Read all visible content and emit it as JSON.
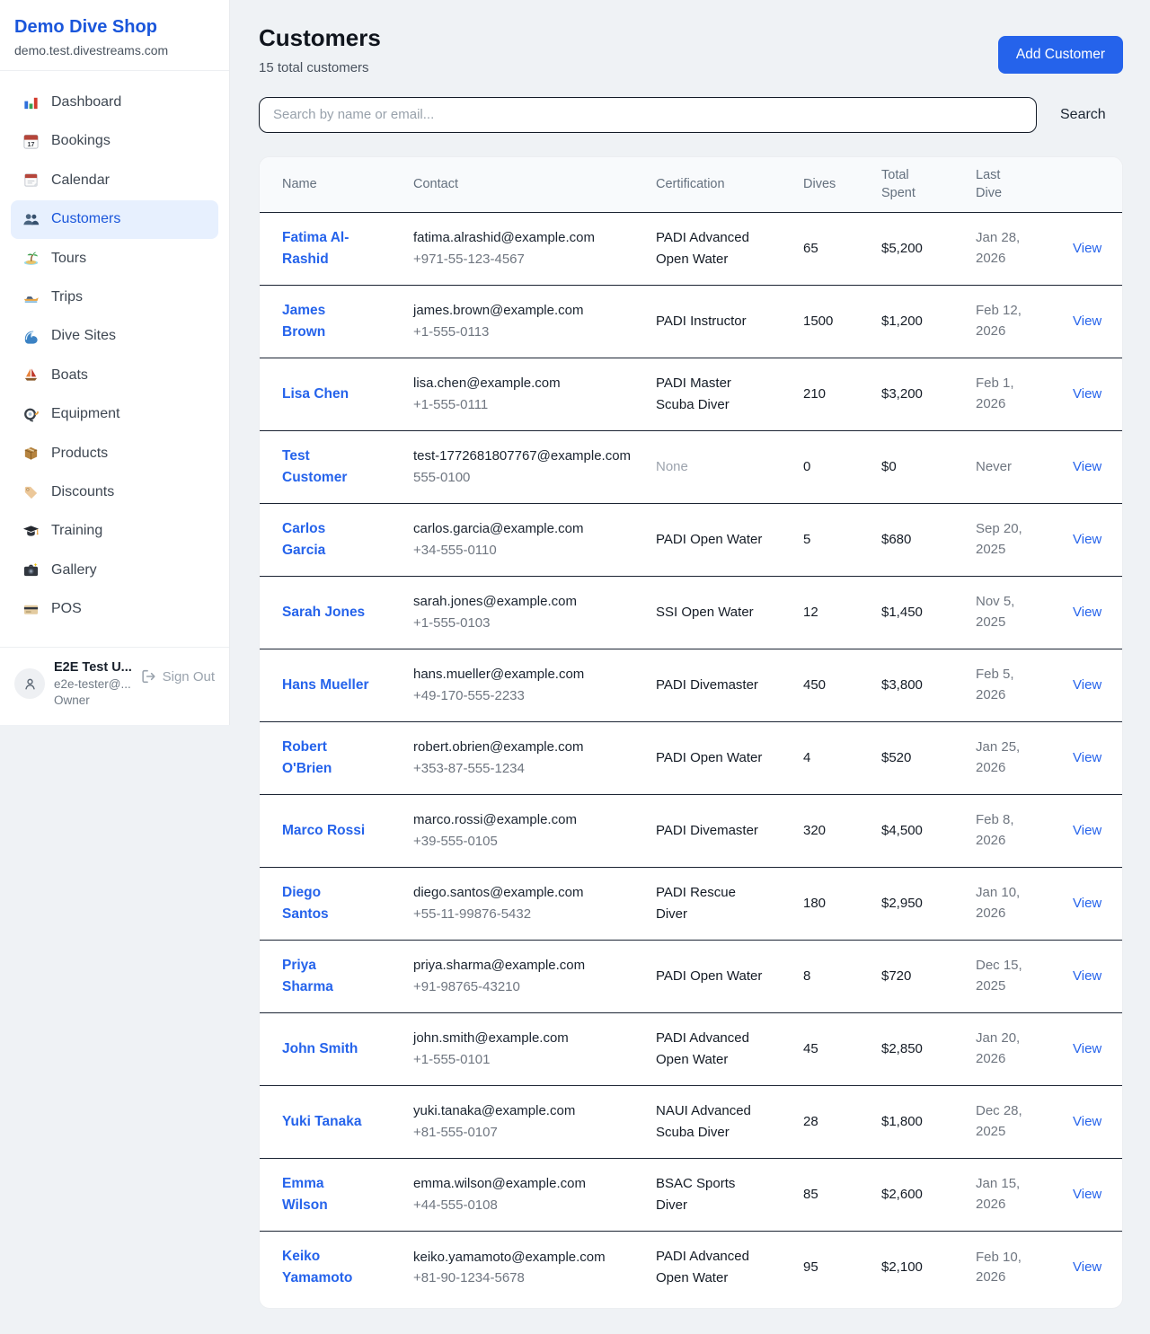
{
  "colors": {
    "accent": "#2563eb",
    "link": "#2563eb",
    "active_nav_bg": "#e7f0fe",
    "sidebar_title": "#1a56db",
    "row_border": "#1b2433"
  },
  "sidebar": {
    "title": "Demo Dive Shop",
    "subdomain": "demo.test.divestreams.com",
    "items": [
      {
        "icon": "bar-chart-icon",
        "label": "Dashboard",
        "active": false
      },
      {
        "icon": "bookings-calendar-icon",
        "label": "Bookings",
        "active": false
      },
      {
        "icon": "calendar-icon",
        "label": "Calendar",
        "active": false
      },
      {
        "icon": "customers-icon",
        "label": "Customers",
        "active": true
      },
      {
        "icon": "island-icon",
        "label": "Tours",
        "active": false
      },
      {
        "icon": "speedboat-icon",
        "label": "Trips",
        "active": false
      },
      {
        "icon": "wave-icon",
        "label": "Dive Sites",
        "active": false
      },
      {
        "icon": "sailboat-icon",
        "label": "Boats",
        "active": false
      },
      {
        "icon": "dive-mask-icon",
        "label": "Equipment",
        "active": false
      },
      {
        "icon": "package-icon",
        "label": "Products",
        "active": false
      },
      {
        "icon": "tag-icon",
        "label": "Discounts",
        "active": false
      },
      {
        "icon": "grad-cap-icon",
        "label": "Training",
        "active": false
      },
      {
        "icon": "camera-icon",
        "label": "Gallery",
        "active": false
      },
      {
        "icon": "credit-card-icon",
        "label": "POS",
        "active": false
      }
    ],
    "user": {
      "avatar_icon": "person-icon",
      "name": "E2E Test U...",
      "email": "e2e-tester@...",
      "role": "Owner",
      "sign_out_icon": "sign-out-icon",
      "sign_out": "Sign Out"
    }
  },
  "header": {
    "title": "Customers",
    "subtitle": "15 total customers",
    "add_button": "Add Customer"
  },
  "search": {
    "placeholder": "Search by name or email...",
    "button": "Search"
  },
  "table": {
    "columns": [
      "Name",
      "Contact",
      "Certification",
      "Dives",
      "Total Spent",
      "Last Dive",
      ""
    ],
    "view_label": "View",
    "rows": [
      {
        "name": "Fatima Al-Rashid",
        "email": "fatima.alrashid@example.com",
        "phone": "+971-55-123-4567",
        "certification": "PADI Advanced Open Water",
        "dives": "65",
        "total_spent": "$5,200",
        "last_dive": "Jan 28, 2026"
      },
      {
        "name": "James Brown",
        "email": "james.brown@example.com",
        "phone": "+1-555-0113",
        "certification": "PADI Instructor",
        "dives": "1500",
        "total_spent": "$1,200",
        "last_dive": "Feb 12, 2026"
      },
      {
        "name": "Lisa Chen",
        "email": "lisa.chen@example.com",
        "phone": "+1-555-0111",
        "certification": "PADI Master Scuba Diver",
        "dives": "210",
        "total_spent": "$3,200",
        "last_dive": "Feb 1, 2026"
      },
      {
        "name": "Test Customer",
        "email": "test-1772681807767@example.com",
        "phone": "555-0100",
        "certification": "None",
        "dives": "0",
        "total_spent": "$0",
        "last_dive": "Never"
      },
      {
        "name": "Carlos Garcia",
        "email": "carlos.garcia@example.com",
        "phone": "+34-555-0110",
        "certification": "PADI Open Water",
        "dives": "5",
        "total_spent": "$680",
        "last_dive": "Sep 20, 2025"
      },
      {
        "name": "Sarah Jones",
        "email": "sarah.jones@example.com",
        "phone": "+1-555-0103",
        "certification": "SSI Open Water",
        "dives": "12",
        "total_spent": "$1,450",
        "last_dive": "Nov 5, 2025"
      },
      {
        "name": "Hans Mueller",
        "email": "hans.mueller@example.com",
        "phone": "+49-170-555-2233",
        "certification": "PADI Divemaster",
        "dives": "450",
        "total_spent": "$3,800",
        "last_dive": "Feb 5, 2026"
      },
      {
        "name": "Robert O'Brien",
        "email": "robert.obrien@example.com",
        "phone": "+353-87-555-1234",
        "certification": "PADI Open Water",
        "dives": "4",
        "total_spent": "$520",
        "last_dive": "Jan 25, 2026"
      },
      {
        "name": "Marco Rossi",
        "email": "marco.rossi@example.com",
        "phone": "+39-555-0105",
        "certification": "PADI Divemaster",
        "dives": "320",
        "total_spent": "$4,500",
        "last_dive": "Feb 8, 2026"
      },
      {
        "name": "Diego Santos",
        "email": "diego.santos@example.com",
        "phone": "+55-11-99876-5432",
        "certification": "PADI Rescue Diver",
        "dives": "180",
        "total_spent": "$2,950",
        "last_dive": "Jan 10, 2026"
      },
      {
        "name": "Priya Sharma",
        "email": "priya.sharma@example.com",
        "phone": "+91-98765-43210",
        "certification": "PADI Open Water",
        "dives": "8",
        "total_spent": "$720",
        "last_dive": "Dec 15, 2025"
      },
      {
        "name": "John Smith",
        "email": "john.smith@example.com",
        "phone": "+1-555-0101",
        "certification": "PADI Advanced Open Water",
        "dives": "45",
        "total_spent": "$2,850",
        "last_dive": "Jan 20, 2026"
      },
      {
        "name": "Yuki Tanaka",
        "email": "yuki.tanaka@example.com",
        "phone": "+81-555-0107",
        "certification": "NAUI Advanced Scuba Diver",
        "dives": "28",
        "total_spent": "$1,800",
        "last_dive": "Dec 28, 2025"
      },
      {
        "name": "Emma Wilson",
        "email": "emma.wilson@example.com",
        "phone": "+44-555-0108",
        "certification": "BSAC Sports Diver",
        "dives": "85",
        "total_spent": "$2,600",
        "last_dive": "Jan 15, 2026"
      },
      {
        "name": "Keiko Yamamoto",
        "email": "keiko.yamamoto@example.com",
        "phone": "+81-90-1234-5678",
        "certification": "PADI Advanced Open Water",
        "dives": "95",
        "total_spent": "$2,100",
        "last_dive": "Feb 10, 2026"
      }
    ]
  }
}
